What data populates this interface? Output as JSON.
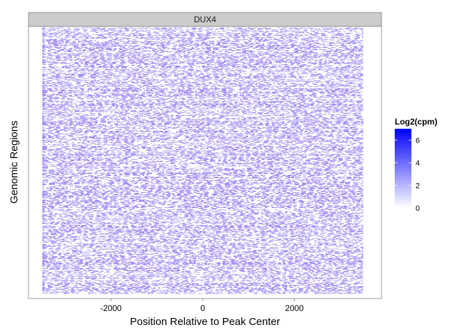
{
  "chart_data": {
    "type": "heatmap",
    "facet": "DUX4",
    "xlabel": "Position Relative to Peak Center",
    "ylabel": "Genomic Regions",
    "xlim": [
      -3800,
      3900
    ],
    "data_x_range": [
      -3500,
      3500
    ],
    "x_ticks": [
      -2000,
      0,
      2000
    ],
    "x_tick_labels": [
      "-2000",
      "0",
      "2000"
    ],
    "rows": 400,
    "grid": false,
    "legend": {
      "title": "Log2(cpm)",
      "position": "right",
      "range": [
        0,
        7
      ],
      "ticks": [
        0,
        2,
        4,
        6
      ],
      "tick_labels": [
        "0",
        "2",
        "4",
        "6"
      ],
      "color_low": "#ffffff",
      "color_high": "#0000ff"
    },
    "colors": {
      "strip_fill": "#cccccc",
      "panel_border": "#7f7f7f",
      "mark_color": "#8a6ff0"
    }
  }
}
